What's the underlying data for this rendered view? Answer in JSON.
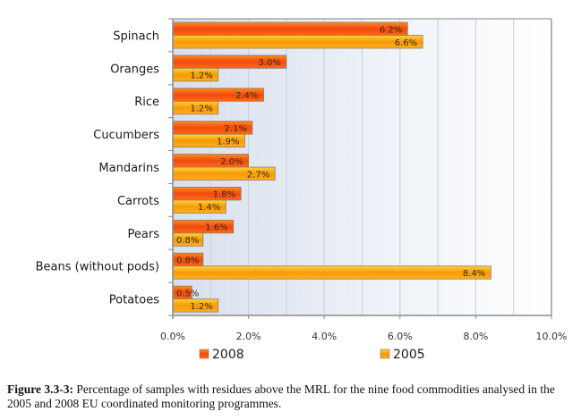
{
  "chart_data": {
    "type": "bar",
    "orientation": "horizontal",
    "title": "",
    "xlabel": "",
    "ylabel": "",
    "categories": [
      "Spinach",
      "Oranges",
      "Rice",
      "Cucumbers",
      "Mandarins",
      "Carrots",
      "Pears",
      "Beans (without pods)",
      "Potatoes"
    ],
    "series": [
      {
        "name": "2008",
        "color": "#f04a10",
        "color_light": "#ff8a1e",
        "values": [
          6.2,
          3.0,
          2.4,
          2.1,
          2.0,
          1.8,
          1.6,
          0.8,
          0.5
        ],
        "labels": [
          "6.2%",
          "3.0%",
          "2.4%",
          "2.1%",
          "2.0%",
          "1.8%",
          "1.6%",
          "0.8%",
          "0.5%"
        ]
      },
      {
        "name": "2005",
        "color": "#f79a08",
        "color_light": "#ffd23a",
        "values": [
          6.6,
          1.2,
          1.2,
          1.9,
          2.7,
          1.4,
          0.8,
          8.4,
          1.2
        ],
        "labels": [
          "6.6%",
          "1.2%",
          "1.2%",
          "1.9%",
          "2.7%",
          "1.4%",
          "0.8%",
          "8.4%",
          "1.2%"
        ]
      }
    ],
    "xlim": [
      0,
      10
    ],
    "x_ticks": [
      0,
      2,
      4,
      6,
      8,
      10
    ],
    "x_tick_labels": [
      "0.0%",
      "2.0%",
      "4.0%",
      "6.0%",
      "8.0%",
      "10.0%"
    ],
    "grid": true,
    "grid_step": 1,
    "legend_position": "bottom"
  },
  "caption": {
    "label": "Figure 3.3-3:",
    "text": " Percentage of samples with residues above the MRL for the nine food commodities analysed in the 2005 and 2008 EU coordinated monitoring programmes."
  }
}
